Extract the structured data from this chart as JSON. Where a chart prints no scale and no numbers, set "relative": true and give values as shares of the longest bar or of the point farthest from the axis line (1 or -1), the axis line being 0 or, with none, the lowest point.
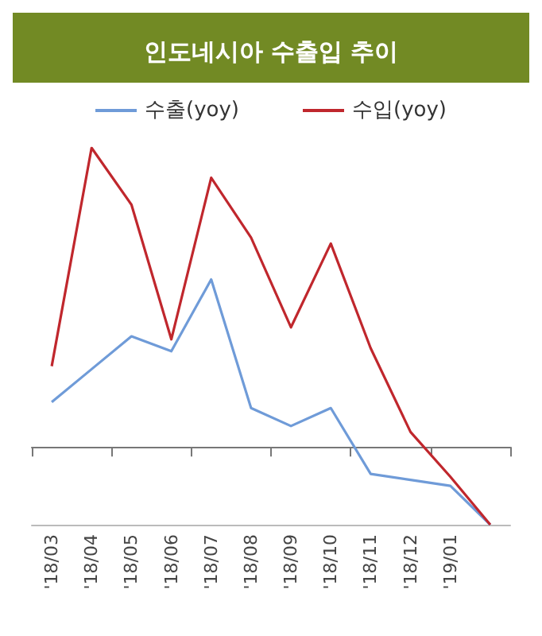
{
  "chart_data": {
    "type": "line",
    "title": "인도네시아 수출입 추이",
    "relative": true,
    "legend": "top",
    "marker": "none",
    "grid": false,
    "categories": [
      "'18/03",
      "'18/04",
      "'18/05",
      "'18/06",
      "'18/07",
      "'18/08",
      "'18/09",
      "'18/10",
      "'18/11",
      "'18/12",
      "'19/01",
      null
    ],
    "series": [
      {
        "name": "수출(yoy)",
        "color": "#6f9bd8",
        "values": [
          0.15,
          0.26,
          0.37,
          0.32,
          0.56,
          0.13,
          0.07,
          0.13,
          -0.09,
          -0.11,
          -0.13,
          -0.26
        ]
      },
      {
        "name": "수입(yoy)",
        "color": "#c0272d",
        "values": [
          0.27,
          1,
          0.81,
          0.36,
          0.9,
          0.7,
          0.4,
          0.68,
          0.33,
          0.05,
          -0.1,
          -0.26
        ]
      }
    ]
  }
}
